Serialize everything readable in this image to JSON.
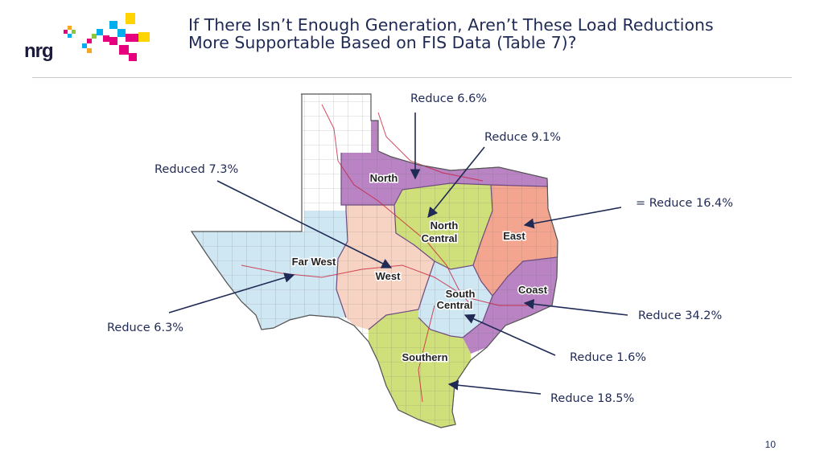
{
  "header": {
    "logo_text": "nrg",
    "title_line1": "If There Isn’t Enough Generation, Aren’t These Load Reductions",
    "title_line2": "More Supportable Based on FIS Data (Table 7)?"
  },
  "regions": {
    "north": "North",
    "north_central_1": "North",
    "north_central_2": "Central",
    "east": "East",
    "far_west": "Far West",
    "west": "West",
    "coast": "Coast",
    "south_central_1": "South",
    "south_central_2": "Central",
    "southern": "Southern"
  },
  "region_colors": {
    "north": "#b983c4",
    "north_central": "#cfe07a",
    "east": "#f4a58f",
    "far_west": "#cfe6f3",
    "west": "#f6d3c2",
    "coast": "#b983c4",
    "south_central": "#cfe6f3",
    "southern": "#cfe07a"
  },
  "annotations": {
    "north": "Reduce 6.6%",
    "north_central": "Reduce 9.1%",
    "west": "Reduced 7.3%",
    "east": "= Reduce 16.4%",
    "far_west": "Reduce 6.3%",
    "coast": "Reduce 34.2%",
    "south_central": "Reduce 1.6%",
    "southern": "Reduce 18.5%"
  },
  "footer": {
    "page_number": "10"
  }
}
